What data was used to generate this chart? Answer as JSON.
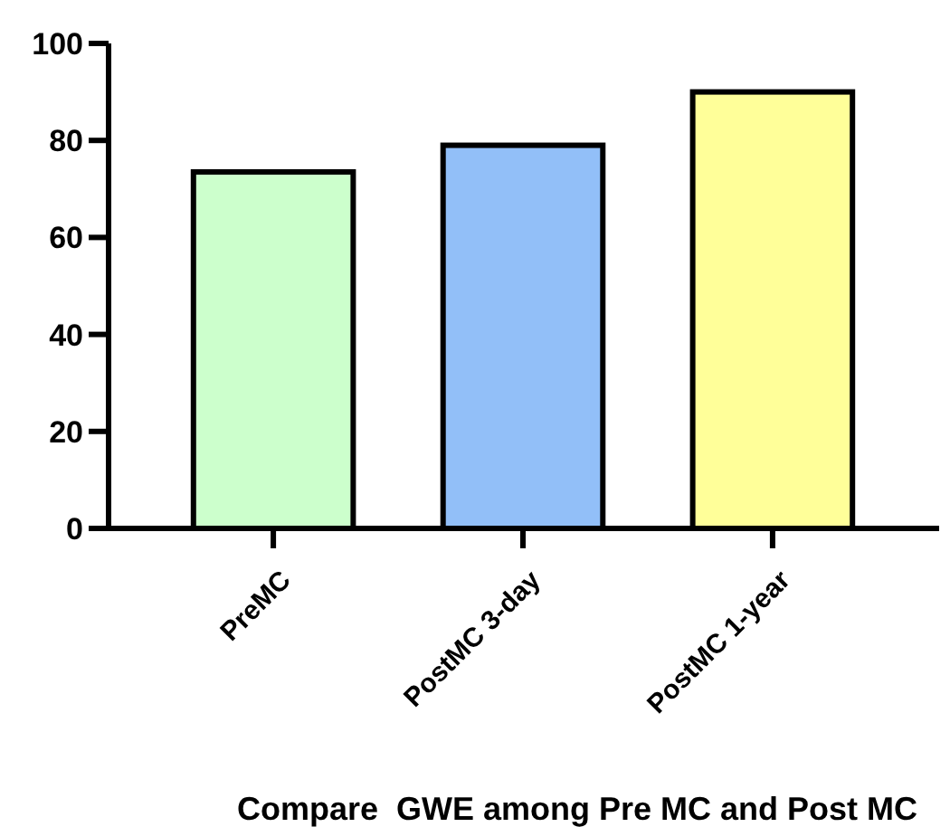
{
  "chart_data": {
    "type": "bar",
    "xlabel": "Compare  GWE among Pre MC and Post MC",
    "categories": [
      "PreMC",
      "PostMC 3-day",
      "PostMC 1-year"
    ],
    "values": [
      73.5,
      79,
      90
    ],
    "colors": [
      "#ccffcc",
      "#92bff8",
      "#ffff99"
    ],
    "ylim": [
      0,
      100
    ],
    "yticks": [
      0,
      20,
      40,
      60,
      80,
      100
    ],
    "grid": false
  }
}
